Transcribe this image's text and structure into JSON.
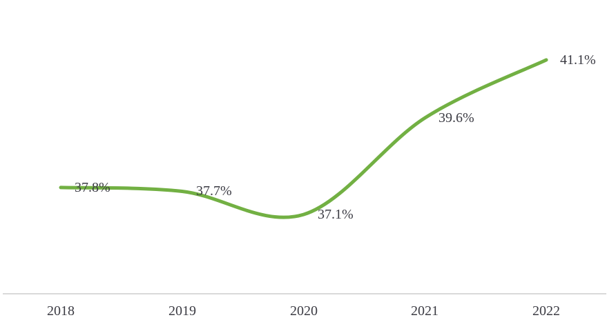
{
  "chart_data": {
    "type": "line",
    "categories": [
      "2018",
      "2019",
      "2020",
      "2021",
      "2022"
    ],
    "values": [
      37.8,
      37.7,
      37.1,
      39.6,
      41.1
    ],
    "labels": [
      "37.8%",
      "37.7%",
      "37.1%",
      "39.6%",
      "41.1%"
    ],
    "ylim": [
      35.05,
      42.65
    ],
    "grid": false,
    "legend_position": "none",
    "smooth": true,
    "line_color": "#72b043",
    "axis_color": "#d9d9d9",
    "text_color": "#3b3b43"
  }
}
